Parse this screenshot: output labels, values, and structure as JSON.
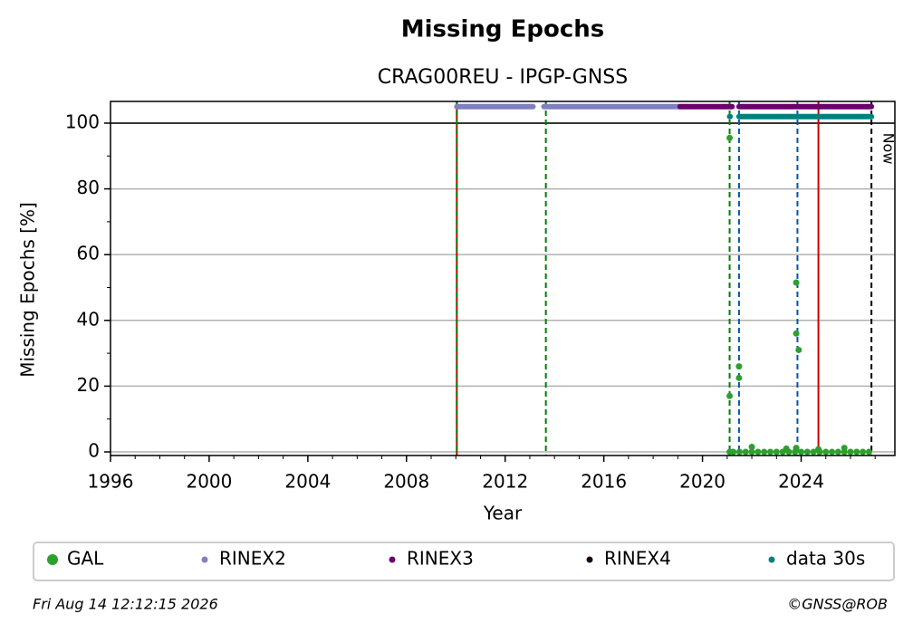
{
  "chart_data": {
    "type": "scatter",
    "title": "Missing Epochs",
    "subtitle": "CRAG00REU - IPGP-GNSS",
    "xlabel": "Year",
    "ylabel": "Missing Epochs [%]",
    "xlim": [
      1996,
      2027.8
    ],
    "ylim": [
      -1.1,
      106.6
    ],
    "xticks": [
      1996,
      2000,
      2004,
      2008,
      2012,
      2016,
      2020,
      2024
    ],
    "xminorticks": [
      1997,
      1998,
      1999,
      2001,
      2002,
      2003,
      2005,
      2006,
      2007,
      2009,
      2010,
      2011,
      2013,
      2014,
      2015,
      2017,
      2018,
      2019,
      2021,
      2022,
      2023,
      2025,
      2026,
      2027
    ],
    "yticks": [
      0,
      20,
      40,
      60,
      80,
      100
    ],
    "yminorticks": [
      10,
      30,
      50,
      70,
      90
    ],
    "grid": true,
    "hline": 100,
    "series": [
      {
        "name": "GAL",
        "color": "#2ca02c",
        "x": [
          2021.1,
          2021.1,
          2021.48,
          2021.48,
          2023.8,
          2023.8,
          2023.9,
          2022.0,
          2023.4,
          2023.8,
          2024.7,
          2025.75,
          2021.1,
          2021.25,
          2021.5,
          2021.75,
          2022.0,
          2022.25,
          2022.5,
          2022.75,
          2023.0,
          2023.25,
          2023.5,
          2023.75,
          2024.0,
          2024.25,
          2024.5,
          2024.75,
          2025.0,
          2025.25,
          2025.5,
          2025.75,
          2026.0,
          2026.25,
          2026.5,
          2026.75
        ],
        "values": [
          95.5,
          17,
          26,
          22.5,
          51.5,
          36,
          31,
          1.5,
          1,
          1.2,
          0.8,
          1.2,
          0,
          0,
          0,
          0,
          0,
          0,
          0,
          0,
          0,
          0,
          0,
          0,
          0,
          0,
          0,
          0,
          0,
          0,
          0,
          0,
          0,
          0,
          0,
          0
        ]
      },
      {
        "name": "RINEX2",
        "color": "#8080c0",
        "y": 105,
        "ranges": [
          [
            2010.04,
            2013.13
          ],
          [
            2013.57,
            2019.09
          ]
        ]
      },
      {
        "name": "RINEX3",
        "color": "#6b006b",
        "y": 105,
        "ranges": [
          [
            2019.09,
            2021.2
          ],
          [
            2021.48,
            2026.85
          ]
        ]
      },
      {
        "name": "RINEX4",
        "color": "#1a001a",
        "ranges": []
      },
      {
        "name": "data 30s",
        "color": "#008080",
        "y": 102,
        "ranges": [
          [
            2021.1,
            2021.12
          ],
          [
            2021.48,
            2026.85
          ]
        ]
      }
    ],
    "vlines": [
      {
        "x": 2010.04,
        "color": "#cc0000",
        "dash": false
      },
      {
        "x": 2010.04,
        "color": "#008000",
        "dash": true
      },
      {
        "x": 2013.65,
        "color": "#008000",
        "dash": true
      },
      {
        "x": 2021.1,
        "color": "#008000",
        "dash": true
      },
      {
        "x": 2021.48,
        "color": "#0055aa",
        "dash": true
      },
      {
        "x": 2023.85,
        "color": "#0055aa",
        "dash": true
      },
      {
        "x": 2024.7,
        "color": "#cc0000",
        "dash": false
      },
      {
        "x": 2026.85,
        "color": "#000000",
        "dash": true,
        "label": "Now"
      }
    ],
    "timestamp": "Fri Aug 14 12:12:15 2026",
    "credit": "©GNSS@ROB"
  }
}
